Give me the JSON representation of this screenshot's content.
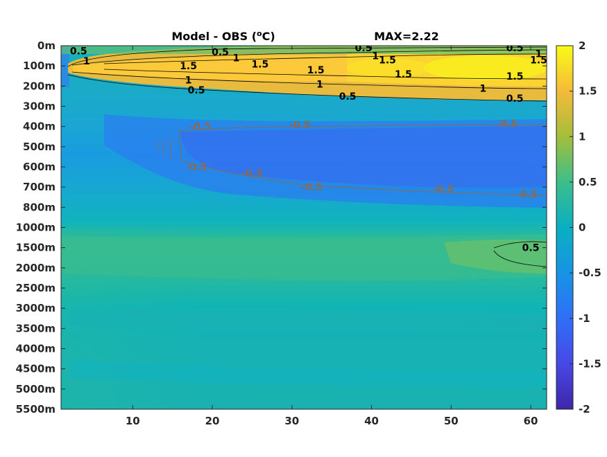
{
  "chart_data": {
    "type": "heatmap",
    "title": "Model - OBS (",
    "title_unit_sup": "o",
    "title_unit_end": "C)",
    "max_label": "MAX=2.22",
    "xlim": [
      1,
      62
    ],
    "x_ticks": [
      10,
      20,
      30,
      40,
      50,
      60
    ],
    "y_tick_labels": [
      "0m",
      "100m",
      "200m",
      "300m",
      "400m",
      "500m",
      "600m",
      "700m",
      "800m",
      "1000m",
      "1500m",
      "2000m",
      "2500m",
      "3000m",
      "3500m",
      "4000m",
      "4500m",
      "5000m",
      "5500m"
    ],
    "colorbar": {
      "range": [
        -2,
        2
      ],
      "ticks": [
        "2",
        "1.5",
        "1",
        "0.5",
        "0",
        "-0.5",
        "-1",
        "-1.5",
        "-2"
      ],
      "colormap": "parula"
    },
    "contour_labels": [
      {
        "text": "0.5",
        "x": 3.2,
        "level": 0.25
      },
      {
        "text": "1",
        "x": 4.2,
        "level": 0.75
      },
      {
        "text": "0.5",
        "x": 21.0,
        "level": 0.3
      },
      {
        "text": "1",
        "x": 23.0,
        "level": 0.6
      },
      {
        "text": "1.5",
        "x": 17.0,
        "level": 1.0
      },
      {
        "text": "1.5",
        "x": 26.0,
        "level": 0.9
      },
      {
        "text": "1",
        "x": 17.0,
        "level": 1.7
      },
      {
        "text": "0.5",
        "x": 18.0,
        "level": 2.2
      },
      {
        "text": "1.5",
        "x": 33.0,
        "level": 1.2
      },
      {
        "text": "1",
        "x": 33.5,
        "level": 1.9
      },
      {
        "text": "0.5",
        "x": 39.0,
        "level": 0.1
      },
      {
        "text": "1",
        "x": 40.5,
        "level": 0.5
      },
      {
        "text": "1.5",
        "x": 42.0,
        "level": 0.7
      },
      {
        "text": "1.5",
        "x": 44.0,
        "level": 1.4
      },
      {
        "text": "0.5",
        "x": 37.0,
        "level": 2.5
      },
      {
        "text": "1",
        "x": 54.0,
        "level": 2.1
      },
      {
        "text": "0.5",
        "x": 58.0,
        "level": 0.1
      },
      {
        "text": "1",
        "x": 61.0,
        "level": 0.4
      },
      {
        "text": "1.5",
        "x": 61.0,
        "level": 0.7
      },
      {
        "text": "1.5",
        "x": 58.0,
        "level": 1.5
      },
      {
        "text": "0.5",
        "x": 58.0,
        "level": 2.6
      },
      {
        "text": "-0.5",
        "x": 18.5,
        "level": 4.0
      },
      {
        "text": "-0.5",
        "x": 31.0,
        "level": 3.9
      },
      {
        "text": "-0.5",
        "x": 57.0,
        "level": 3.85
      },
      {
        "text": "-0.5",
        "x": 18.0,
        "level": 6.0
      },
      {
        "text": "-0.5",
        "x": 25.0,
        "level": 6.3
      },
      {
        "text": "-0.5",
        "x": 32.5,
        "level": 7.0
      },
      {
        "text": "-0.5",
        "x": 49.0,
        "level": 7.1
      },
      {
        "text": "-0.5",
        "x": 59.5,
        "level": 7.35
      },
      {
        "text": "0.5",
        "x": 60.0,
        "level": 10.0
      }
    ]
  }
}
